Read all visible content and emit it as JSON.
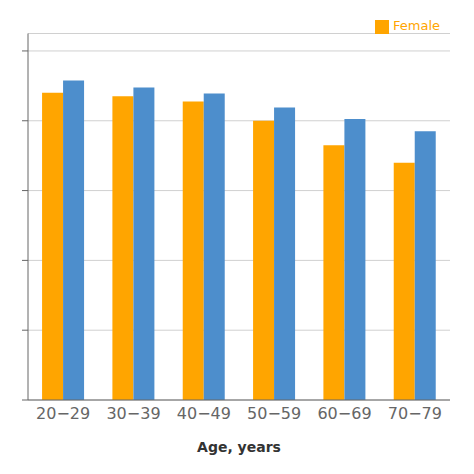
{
  "chart_data": {
    "type": "bar",
    "xlabel": "Age, years",
    "categories": [
      "20−29",
      "30−39",
      "40−49",
      "50−59",
      "60−69",
      "70−79"
    ],
    "series": [
      {
        "name": "Female",
        "color": "#FFA500",
        "values": [
          0.88,
          0.87,
          0.855,
          0.8,
          0.73,
          0.68
        ]
      },
      {
        "color": "#4D8ECC",
        "values": [
          0.915,
          0.895,
          0.878,
          0.838,
          0.805,
          0.77
        ]
      }
    ],
    "ylim": [
      0.0,
      1.05
    ],
    "yticks": [
      0.0,
      0.2,
      0.4,
      0.6,
      0.8,
      1.0
    ],
    "grid": true,
    "legend": "upper right",
    "tick_labels": "x"
  }
}
